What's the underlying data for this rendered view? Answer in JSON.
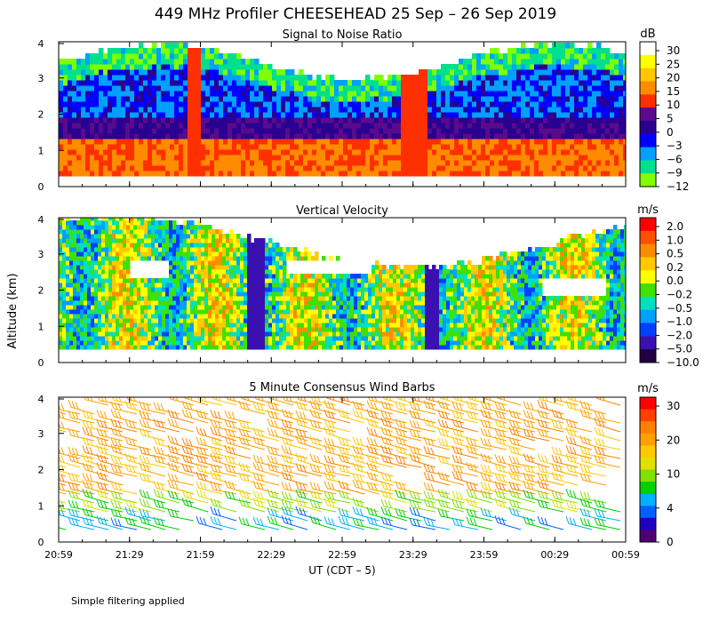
{
  "figure": {
    "title": "449 MHz Profiler CHEESEHEAD 25 Sep – 26 Sep 2019",
    "ylabel": "Altitude (km)",
    "xlabel": "UT  (CDT – 5)",
    "note": "Simple filtering applied"
  },
  "chart_data": [
    {
      "type": "heatmap",
      "title": "Signal to Noise Ratio",
      "x_ticks": [
        "20:59",
        "21:29",
        "21:59",
        "22:29",
        "22:59",
        "23:29",
        "23:59",
        "00:29",
        "00:59"
      ],
      "y_ticks": [
        "0",
        "1",
        "2",
        "3",
        "4"
      ],
      "ylim": [
        0,
        4
      ],
      "colorbar": {
        "unit": "dB",
        "labels": [
          "30",
          "25",
          "20",
          "15",
          "10",
          "5",
          "0",
          "−3",
          "−6",
          "−9",
          "−12"
        ],
        "colors": [
          "#ffffff",
          "#ffff00",
          "#ffc800",
          "#ff8c00",
          "#ff3000",
          "#5a0a8c",
          "#2a0090",
          "#0000ff",
          "#00a0ff",
          "#00e08c",
          "#80ff00"
        ]
      }
    },
    {
      "type": "heatmap",
      "title": "Vertical Velocity",
      "x_ticks": [
        "20:59",
        "21:29",
        "21:59",
        "22:29",
        "22:59",
        "23:29",
        "23:59",
        "00:29",
        "00:59"
      ],
      "y_ticks": [
        "0",
        "1",
        "2",
        "3",
        "4"
      ],
      "ylim": [
        0,
        4
      ],
      "colorbar": {
        "unit": "m/s",
        "labels": [
          "2.0",
          "1.0",
          "0.5",
          "0.2",
          "0.0",
          "−0.2",
          "−0.5",
          "−1.0",
          "−2.0",
          "−5.0",
          "−10.0"
        ],
        "colors": [
          "#ff0000",
          "#ff5000",
          "#ff8c00",
          "#ffc800",
          "#ffff00",
          "#40e000",
          "#00e0c0",
          "#00a0ff",
          "#0040ff",
          "#3a10b0",
          "#200040"
        ]
      }
    },
    {
      "type": "scatter",
      "title": "5 Minute Consensus Wind Barbs",
      "x_ticks": [
        "20:59",
        "21:29",
        "21:59",
        "22:29",
        "22:59",
        "23:29",
        "23:59",
        "00:29",
        "00:59"
      ],
      "y_ticks": [
        "0",
        "1",
        "2",
        "3",
        "4"
      ],
      "ylim": [
        0,
        4
      ],
      "colorbar": {
        "unit": "m/s",
        "labels": [
          "30",
          "20",
          "10",
          "4",
          "0"
        ],
        "colors": [
          "#ff0000",
          "#ff4000",
          "#ff8000",
          "#ffa000",
          "#ffc800",
          "#e0e000",
          "#80e000",
          "#00d000",
          "#00b0ff",
          "#0060ff",
          "#2000c0",
          "#500070"
        ]
      }
    }
  ]
}
